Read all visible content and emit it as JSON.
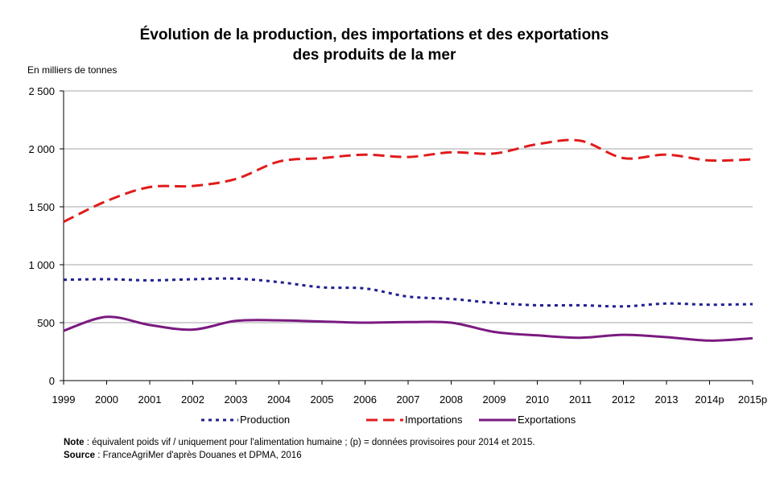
{
  "chart_data": {
    "type": "line",
    "title_line1": "Évolution de la production, des importations et des exportations",
    "title_line2": "des produits de la mer",
    "ylabel": "En milliers de tonnes",
    "ylim": [
      0,
      2500
    ],
    "yticks": [
      0,
      500,
      1000,
      1500,
      2000,
      2500
    ],
    "ytick_labels": [
      "0",
      "500",
      "1 000",
      "1 500",
      "2 000",
      "2 500"
    ],
    "categories": [
      "1999",
      "2000",
      "2001",
      "2002",
      "2003",
      "2004",
      "2005",
      "2006",
      "2007",
      "2008",
      "2009",
      "2010",
      "2011",
      "2012",
      "2013",
      "2014p",
      "2015p"
    ],
    "series": [
      {
        "name": "Production",
        "color": "#1f1f8f",
        "dash": "dotted",
        "values": [
          870,
          875,
          865,
          875,
          880,
          850,
          805,
          795,
          725,
          705,
          670,
          650,
          650,
          640,
          665,
          655,
          660
        ]
      },
      {
        "name": "Importations",
        "color": "#e11b1b",
        "dash": "dashed",
        "values": [
          1370,
          1550,
          1670,
          1680,
          1740,
          1890,
          1920,
          1950,
          1930,
          1970,
          1960,
          2040,
          2070,
          1920,
          1950,
          1900,
          1910
        ]
      },
      {
        "name": "Exportations",
        "color": "#7a1a80",
        "dash": "solid",
        "values": [
          430,
          550,
          480,
          440,
          515,
          520,
          510,
          500,
          505,
          500,
          420,
          390,
          370,
          395,
          375,
          345,
          365
        ]
      }
    ],
    "grid": true,
    "legend_position": "bottom"
  },
  "notes": {
    "note_label": "Note",
    "note_text": " : équivalent poids vif / uniquement pour l'alimentation humaine ; (p) = données provisoires pour 2014 et 2015.",
    "source_label": "Source",
    "source_text": " : FranceAgriMer d'après Douanes et DPMA, 2016"
  }
}
